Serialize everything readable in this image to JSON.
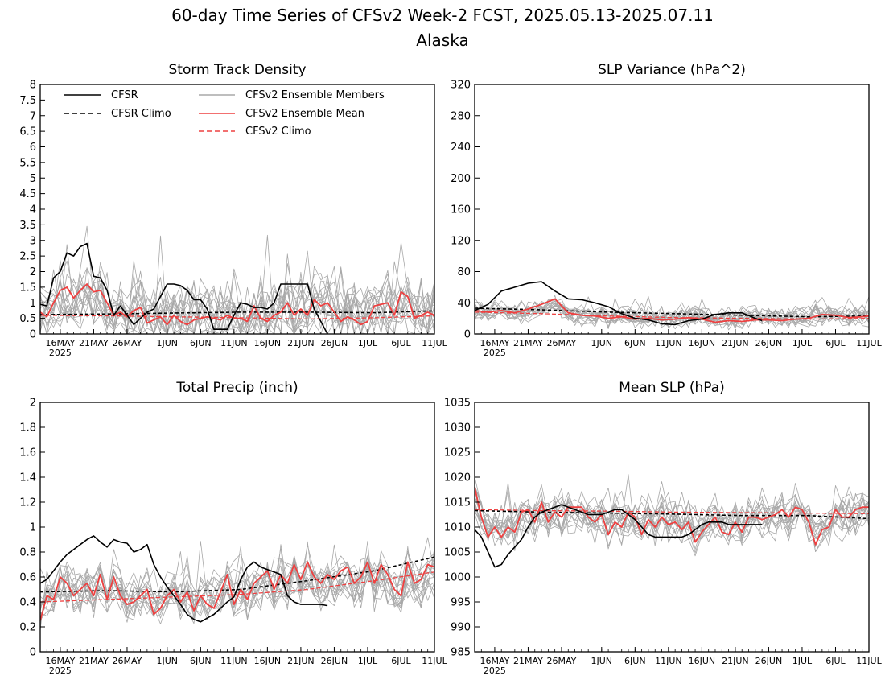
{
  "figure": {
    "title_line1": "60-day Time Series of CFSv2 Week-2 FCST, 2025.05.13-2025.07.11",
    "title_line2": "Alaska"
  },
  "x_axis": {
    "tick_labels": [
      "16MAY",
      "21MAY",
      "26MAY",
      "1JUN",
      "6JUN",
      "11JUN",
      "16JUN",
      "21JUN",
      "26JUN",
      "1JUL",
      "6JUL",
      "11JUL"
    ],
    "tick_days": [
      3,
      8,
      13,
      19,
      24,
      29,
      34,
      39,
      44,
      49,
      54,
      59
    ],
    "year_label": "2025",
    "range_days": [
      0,
      59
    ]
  },
  "legend": {
    "cfsr": "CFSR",
    "cfsr_climo": "CFSR Climo",
    "members": "CFSv2 Ensemble Members",
    "mean": "CFSv2 Ensemble Mean",
    "cfsv2_climo": "CFSv2 Climo"
  },
  "colors": {
    "cfsr": "#000000",
    "members": "#a8a8a8",
    "mean": "#ee4040",
    "climo_red": "#ee4040",
    "legend_members_text": "#a8a8a8",
    "legend_red_text": "#ee4040"
  },
  "chart_data": [
    {
      "type": "line",
      "title": "Storm Track Density",
      "ylim": [
        0,
        8
      ],
      "yticks": [
        "0",
        "0.5",
        "1",
        "1.5",
        "2",
        "2.5",
        "3",
        "3.5",
        "4",
        "4.5",
        "5",
        "5.5",
        "6",
        "6.5",
        "7",
        "7.5",
        "8"
      ],
      "ytick_values": [
        0,
        0.5,
        1,
        1.5,
        2,
        2.5,
        3,
        3.5,
        4,
        4.5,
        5,
        5.5,
        6,
        6.5,
        7,
        7.5,
        8
      ],
      "members": {
        "center": 0.7,
        "spread": 1.3,
        "max": 4.2,
        "count": 16,
        "floor": 0
      },
      "series": [
        {
          "name": "CFSR",
          "x": [
            0,
            1,
            2,
            3,
            4,
            5,
            6,
            7,
            8,
            9,
            10,
            11,
            12,
            13,
            14,
            15,
            16,
            17,
            18,
            19,
            20,
            21,
            22,
            23,
            24,
            25,
            26,
            27,
            28,
            29,
            30,
            31,
            32,
            33,
            34,
            35,
            36,
            37,
            38,
            39,
            40,
            41,
            42,
            43
          ],
          "values": [
            0.95,
            0.9,
            1.8,
            2.0,
            2.6,
            2.5,
            2.8,
            2.9,
            1.85,
            1.8,
            1.4,
            0.6,
            0.9,
            0.6,
            0.3,
            0.5,
            0.7,
            0.8,
            1.2,
            1.6,
            1.6,
            1.55,
            1.4,
            1.1,
            1.1,
            0.8,
            0.15,
            0.15,
            0.15,
            0.6,
            1.0,
            0.95,
            0.85,
            0.85,
            0.8,
            1.0,
            1.6,
            1.6,
            1.6,
            1.6,
            1.6,
            0.8,
            0.4,
            0.0
          ]
        },
        {
          "name": "CFSR Climo",
          "x": [
            0,
            10,
            20,
            30,
            40,
            50,
            59
          ],
          "values": [
            0.62,
            0.64,
            0.67,
            0.7,
            0.7,
            0.68,
            0.74
          ]
        },
        {
          "name": "CFSv2 Ensemble Mean",
          "x": [
            0,
            1,
            2,
            3,
            4,
            5,
            6,
            7,
            8,
            9,
            10,
            11,
            12,
            13,
            14,
            15,
            16,
            17,
            18,
            19,
            20,
            21,
            22,
            23,
            24,
            25,
            26,
            27,
            28,
            29,
            30,
            31,
            32,
            33,
            34,
            35,
            36,
            37,
            38,
            39,
            40,
            41,
            42,
            43,
            44,
            45,
            46,
            47,
            48,
            49,
            50,
            51,
            52,
            53,
            54,
            55,
            56,
            57,
            58,
            59
          ],
          "values": [
            0.7,
            0.55,
            1.0,
            1.4,
            1.5,
            1.15,
            1.4,
            1.6,
            1.35,
            1.4,
            1.0,
            0.6,
            0.7,
            0.55,
            0.75,
            0.85,
            0.35,
            0.45,
            0.55,
            0.3,
            0.6,
            0.4,
            0.3,
            0.45,
            0.5,
            0.55,
            0.5,
            0.45,
            0.6,
            0.5,
            0.5,
            0.4,
            0.9,
            0.5,
            0.4,
            0.6,
            0.7,
            1.0,
            0.6,
            0.8,
            0.6,
            1.1,
            0.9,
            1.0,
            0.7,
            0.4,
            0.55,
            0.45,
            0.3,
            0.4,
            0.9,
            0.95,
            1.0,
            0.6,
            1.35,
            1.2,
            0.5,
            0.6,
            0.7,
            0.6
          ]
        },
        {
          "name": "CFSv2 Climo",
          "x": [
            0,
            10,
            20,
            30,
            40,
            50,
            59
          ],
          "values": [
            0.6,
            0.58,
            0.55,
            0.52,
            0.48,
            0.52,
            0.58
          ]
        }
      ]
    },
    {
      "type": "line",
      "title": "SLP Variance (hPa^2)",
      "ylim": [
        0,
        320
      ],
      "yticks": [
        "0",
        "40",
        "80",
        "120",
        "160",
        "200",
        "240",
        "280",
        "320"
      ],
      "ytick_values": [
        0,
        40,
        80,
        120,
        160,
        200,
        240,
        280,
        320
      ],
      "members": {
        "center": 24,
        "spread": 16,
        "max": 85,
        "count": 16,
        "floor": 3
      },
      "series": [
        {
          "name": "CFSR",
          "x": [
            0,
            2,
            4,
            6,
            8,
            10,
            12,
            14,
            16,
            18,
            20,
            22,
            24,
            26,
            28,
            30,
            32,
            34,
            36,
            38,
            40,
            42,
            43
          ],
          "values": [
            30,
            38,
            55,
            60,
            65,
            67,
            55,
            45,
            44,
            40,
            35,
            26,
            20,
            18,
            13,
            12,
            17,
            19,
            25,
            27,
            27,
            20,
            17
          ]
        },
        {
          "name": "CFSR Climo",
          "x": [
            0,
            10,
            20,
            30,
            40,
            50,
            59
          ],
          "values": [
            33,
            31,
            28,
            26,
            24,
            22,
            23
          ]
        },
        {
          "name": "CFSv2 Ensemble Mean",
          "x": [
            0,
            2,
            4,
            6,
            8,
            10,
            12,
            14,
            16,
            18,
            20,
            22,
            24,
            26,
            28,
            30,
            32,
            34,
            36,
            38,
            40,
            42,
            44,
            46,
            48,
            50,
            52,
            54,
            56,
            58,
            59
          ],
          "values": [
            30,
            28,
            30,
            27,
            32,
            38,
            45,
            27,
            24,
            23,
            20,
            22,
            19,
            20,
            18,
            19,
            21,
            19,
            15,
            17,
            16,
            18,
            18,
            17,
            19,
            20,
            25,
            24,
            21,
            22,
            23
          ]
        },
        {
          "name": "CFSv2 Climo",
          "x": [
            0,
            10,
            20,
            30,
            40,
            50,
            59
          ],
          "values": [
            28,
            26,
            23,
            21,
            20,
            19,
            20
          ]
        }
      ]
    },
    {
      "type": "line",
      "title": "Total Precip (inch)",
      "ylim": [
        0,
        2
      ],
      "yticks": [
        "0",
        "0.2",
        "0.4",
        "0.6",
        "0.8",
        "1",
        "1.2",
        "1.4",
        "1.6",
        "1.8",
        "2"
      ],
      "ytick_values": [
        0,
        0.2,
        0.4,
        0.6,
        0.8,
        1.0,
        1.2,
        1.4,
        1.6,
        1.8,
        2.0
      ],
      "members": {
        "center": 0.47,
        "spread": 0.22,
        "max": 1.1,
        "count": 16,
        "floor": 0.05
      },
      "series": [
        {
          "name": "CFSR",
          "x": [
            0,
            1,
            2,
            3,
            4,
            5,
            6,
            7,
            8,
            9,
            10,
            11,
            12,
            13,
            14,
            15,
            16,
            17,
            18,
            19,
            20,
            21,
            22,
            23,
            24,
            25,
            26,
            27,
            28,
            29,
            30,
            31,
            32,
            33,
            34,
            35,
            36,
            37,
            38,
            39,
            40,
            41,
            42,
            43
          ],
          "values": [
            0.55,
            0.58,
            0.65,
            0.72,
            0.78,
            0.82,
            0.86,
            0.9,
            0.93,
            0.88,
            0.84,
            0.9,
            0.88,
            0.87,
            0.8,
            0.82,
            0.86,
            0.7,
            0.6,
            0.52,
            0.45,
            0.38,
            0.3,
            0.26,
            0.24,
            0.27,
            0.3,
            0.35,
            0.4,
            0.44,
            0.58,
            0.68,
            0.72,
            0.68,
            0.66,
            0.64,
            0.62,
            0.45,
            0.4,
            0.38,
            0.38,
            0.38,
            0.38,
            0.37
          ]
        },
        {
          "name": "CFSR Climo",
          "x": [
            0,
            10,
            20,
            30,
            40,
            50,
            59
          ],
          "values": [
            0.48,
            0.49,
            0.48,
            0.5,
            0.57,
            0.65,
            0.76
          ]
        },
        {
          "name": "CFSv2 Ensemble Mean",
          "x": [
            0,
            1,
            2,
            3,
            4,
            5,
            6,
            7,
            8,
            9,
            10,
            11,
            12,
            13,
            14,
            15,
            16,
            17,
            18,
            19,
            20,
            21,
            22,
            23,
            24,
            25,
            26,
            27,
            28,
            29,
            30,
            31,
            32,
            33,
            34,
            35,
            36,
            37,
            38,
            39,
            40,
            41,
            42,
            43,
            44,
            45,
            46,
            47,
            48,
            49,
            50,
            51,
            52,
            53,
            54,
            55,
            56,
            57,
            58,
            59
          ],
          "values": [
            0.25,
            0.45,
            0.42,
            0.6,
            0.55,
            0.45,
            0.5,
            0.55,
            0.45,
            0.62,
            0.42,
            0.6,
            0.45,
            0.38,
            0.4,
            0.45,
            0.5,
            0.3,
            0.35,
            0.45,
            0.5,
            0.4,
            0.48,
            0.33,
            0.45,
            0.38,
            0.35,
            0.48,
            0.62,
            0.38,
            0.5,
            0.42,
            0.55,
            0.6,
            0.65,
            0.5,
            0.62,
            0.55,
            0.7,
            0.58,
            0.72,
            0.6,
            0.55,
            0.62,
            0.58,
            0.65,
            0.68,
            0.55,
            0.6,
            0.72,
            0.55,
            0.7,
            0.62,
            0.5,
            0.45,
            0.72,
            0.55,
            0.58,
            0.7,
            0.68
          ]
        },
        {
          "name": "CFSv2 Climo",
          "x": [
            0,
            10,
            20,
            30,
            40,
            50,
            59
          ],
          "values": [
            0.4,
            0.42,
            0.44,
            0.46,
            0.5,
            0.57,
            0.64
          ]
        }
      ]
    },
    {
      "type": "line",
      "title": "Mean SLP (hPa)",
      "ylim": [
        985,
        1035
      ],
      "yticks": [
        "985",
        "990",
        "995",
        "1000",
        "1005",
        "1010",
        "1015",
        "1020",
        "1025",
        "1030",
        "1035"
      ],
      "ytick_values": [
        985,
        990,
        995,
        1000,
        1005,
        1010,
        1015,
        1020,
        1025,
        1030,
        1035
      ],
      "members": {
        "center": 1011.5,
        "spread": 5,
        "max": 1021,
        "count": 16,
        "floor": 999
      },
      "series": [
        {
          "name": "CFSR",
          "x": [
            0,
            1,
            2,
            3,
            4,
            5,
            6,
            7,
            8,
            9,
            10,
            11,
            12,
            13,
            14,
            15,
            16,
            17,
            18,
            19,
            20,
            21,
            22,
            23,
            24,
            25,
            26,
            27,
            28,
            29,
            30,
            31,
            32,
            33,
            34,
            35,
            36,
            37,
            38,
            39,
            40,
            41,
            42,
            43
          ],
          "values": [
            1009.5,
            1008,
            1005,
            1002,
            1002.5,
            1004.5,
            1006,
            1007.5,
            1010,
            1012,
            1013,
            1013.5,
            1014,
            1014.5,
            1014,
            1013.5,
            1013,
            1012.5,
            1012.5,
            1012.5,
            1013,
            1013.5,
            1013.5,
            1012.5,
            1011.5,
            1010,
            1008.5,
            1008,
            1008,
            1008,
            1008,
            1008,
            1008.5,
            1009.5,
            1010.5,
            1011,
            1011,
            1011,
            1010.5,
            1010.5,
            1010.5,
            1010.5,
            1010.5,
            1010.5
          ]
        },
        {
          "name": "CFSR Climo",
          "x": [
            0,
            10,
            20,
            30,
            40,
            50,
            59
          ],
          "values": [
            1013.3,
            1013,
            1012.8,
            1012.6,
            1012.3,
            1012.3,
            1011.7
          ]
        },
        {
          "name": "CFSv2 Ensemble Mean",
          "x": [
            0,
            1,
            2,
            3,
            4,
            5,
            6,
            7,
            8,
            9,
            10,
            11,
            12,
            13,
            14,
            15,
            16,
            17,
            18,
            19,
            20,
            21,
            22,
            23,
            24,
            25,
            26,
            27,
            28,
            29,
            30,
            31,
            32,
            33,
            34,
            35,
            36,
            37,
            38,
            39,
            40,
            41,
            42,
            43,
            44,
            45,
            46,
            47,
            48,
            49,
            50,
            51,
            52,
            53,
            54,
            55,
            56,
            57,
            58,
            59
          ],
          "values": [
            1018,
            1012,
            1008,
            1010,
            1008,
            1010,
            1009,
            1013,
            1013.5,
            1011,
            1015,
            1011,
            1013,
            1012,
            1014,
            1014,
            1014,
            1012,
            1011,
            1012.5,
            1008.5,
            1011,
            1010,
            1013,
            1012,
            1008.5,
            1011.5,
            1010,
            1012,
            1010.5,
            1011,
            1009.5,
            1011,
            1007,
            1009,
            1010.5,
            1012,
            1009,
            1008.5,
            1011,
            1009,
            1012,
            1012,
            1011.5,
            1012,
            1012.5,
            1013.5,
            1012,
            1014,
            1013.5,
            1011,
            1006.5,
            1009.5,
            1010,
            1013.5,
            1012,
            1012,
            1013.5,
            1014,
            1014
          ]
        },
        {
          "name": "CFSv2 Climo",
          "x": [
            0,
            10,
            20,
            30,
            40,
            50,
            59
          ],
          "values": [
            1013.5,
            1013.3,
            1013.2,
            1013,
            1012.9,
            1012.8,
            1012.7
          ]
        }
      ]
    }
  ]
}
